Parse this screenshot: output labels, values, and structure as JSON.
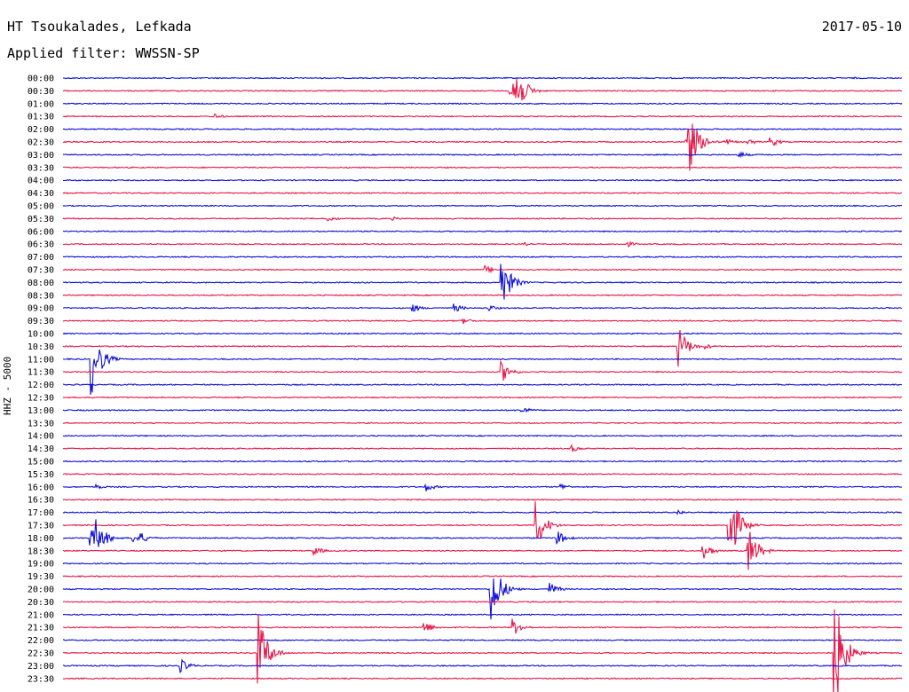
{
  "header": {
    "station": "HT Tsoukalades, Lefkada",
    "filter": "Applied filter: WWSSN-SP",
    "date": "2017-05-10"
  },
  "colors": {
    "blue": "#1010d8",
    "red": "#e8184a"
  },
  "chart_data": {
    "type": "line",
    "title": "HT Tsoukalades, Lefkada",
    "subtitle": "Applied filter: WWSSN-SP",
    "date": "2017-05-10",
    "ylabel": "HHZ - 5000",
    "rows": [
      "00:00",
      "00:30",
      "01:00",
      "01:30",
      "02:00",
      "02:30",
      "03:00",
      "03:30",
      "04:00",
      "04:30",
      "05:00",
      "05:30",
      "06:00",
      "06:30",
      "07:00",
      "07:30",
      "08:00",
      "08:30",
      "09:00",
      "09:30",
      "10:00",
      "10:30",
      "11:00",
      "11:30",
      "12:00",
      "12:30",
      "13:00",
      "13:30",
      "14:00",
      "14:30",
      "15:00",
      "15:30",
      "16:00",
      "16:30",
      "17:00",
      "17:30",
      "18:00",
      "18:30",
      "19:00",
      "19:30",
      "20:00",
      "20:30",
      "21:00",
      "21:30",
      "22:00",
      "22:30",
      "23:00",
      "23:30"
    ],
    "row_minutes": 30,
    "series_colors": [
      "blue",
      "red"
    ],
    "events": [
      {
        "row": 0,
        "min": 28.3,
        "amp": 1.0
      },
      {
        "row": 1,
        "min": 16.0,
        "amp": 6.0
      },
      {
        "row": 1,
        "min": 16.1,
        "amp": 45.0
      },
      {
        "row": 3,
        "min": 5.4,
        "amp": 3.5
      },
      {
        "row": 5,
        "min": 22.3,
        "amp": 50.0
      },
      {
        "row": 5,
        "min": 23.0,
        "amp": 5.0
      },
      {
        "row": 5,
        "min": 23.7,
        "amp": 4.0
      },
      {
        "row": 5,
        "min": 24.5,
        "amp": 4.0
      },
      {
        "row": 5,
        "min": 25.3,
        "amp": 6.0
      },
      {
        "row": 6,
        "min": 24.2,
        "amp": 4.0
      },
      {
        "row": 11,
        "min": 9.5,
        "amp": 3.5
      },
      {
        "row": 11,
        "min": 11.8,
        "amp": 2.0
      },
      {
        "row": 13,
        "min": 16.5,
        "amp": 2.0
      },
      {
        "row": 13,
        "min": 20.2,
        "amp": 3.0
      },
      {
        "row": 15,
        "min": 15.1,
        "amp": 5.0
      },
      {
        "row": 16,
        "min": 15.7,
        "amp": 30.0
      },
      {
        "row": 18,
        "min": 12.5,
        "amp": 5.0
      },
      {
        "row": 18,
        "min": 14.0,
        "amp": 5.0
      },
      {
        "row": 18,
        "min": 15.2,
        "amp": 4.0
      },
      {
        "row": 19,
        "min": 14.3,
        "amp": 4.0
      },
      {
        "row": 21,
        "min": 22.0,
        "amp": 25.0
      },
      {
        "row": 21,
        "min": 23.0,
        "amp": 3.0
      },
      {
        "row": 22,
        "min": 1.0,
        "amp": 45.0
      },
      {
        "row": 23,
        "min": 15.7,
        "amp": 12.0
      },
      {
        "row": 26,
        "min": 16.4,
        "amp": 5.0
      },
      {
        "row": 29,
        "min": 18.2,
        "amp": 4.0
      },
      {
        "row": 32,
        "min": 1.2,
        "amp": 3.0
      },
      {
        "row": 32,
        "min": 13.0,
        "amp": 5.0
      },
      {
        "row": 32,
        "min": 17.8,
        "amp": 4.0
      },
      {
        "row": 34,
        "min": 22.0,
        "amp": 3.0
      },
      {
        "row": 35,
        "min": 16.9,
        "amp": 30.0
      },
      {
        "row": 35,
        "min": 23.8,
        "amp": 50.0
      },
      {
        "row": 36,
        "min": 1.0,
        "amp": 12.0
      },
      {
        "row": 36,
        "min": 1.2,
        "amp": 22.0
      },
      {
        "row": 36,
        "min": 2.5,
        "amp": 6.0
      },
      {
        "row": 36,
        "min": 2.8,
        "amp": 6.0
      },
      {
        "row": 36,
        "min": 17.7,
        "amp": 8.0
      },
      {
        "row": 37,
        "min": 9.0,
        "amp": 5.0
      },
      {
        "row": 37,
        "min": 22.9,
        "amp": 10.0
      },
      {
        "row": 37,
        "min": 24.5,
        "amp": 30.0
      },
      {
        "row": 40,
        "min": 15.3,
        "amp": 45.0
      },
      {
        "row": 40,
        "min": 17.4,
        "amp": 8.0
      },
      {
        "row": 43,
        "min": 12.9,
        "amp": 8.0
      },
      {
        "row": 43,
        "min": 16.1,
        "amp": 10.0
      },
      {
        "row": 45,
        "min": 7.0,
        "amp": 45.0
      },
      {
        "row": 45,
        "min": 27.6,
        "amp": 70.0
      },
      {
        "row": 46,
        "min": 4.2,
        "amp": 8.0
      }
    ]
  }
}
